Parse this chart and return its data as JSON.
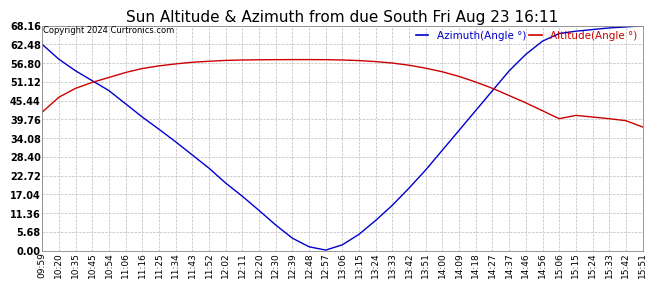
{
  "title": "Sun Altitude & Azimuth from due South Fri Aug 23 16:11",
  "copyright": "Copyright 2024 Curtronics.com",
  "legend_azimuth": "Azimuth(Angle °)",
  "legend_altitude": "Altitude(Angle °)",
  "azimuth_color": "#0000cc",
  "altitude_color": "#cc0000",
  "background_color": "#ffffff",
  "grid_color": "#bbbbbb",
  "yticks": [
    0.0,
    5.68,
    11.36,
    17.04,
    22.72,
    28.4,
    34.08,
    39.76,
    45.44,
    51.12,
    56.8,
    62.48,
    68.16
  ],
  "ylim": [
    0.0,
    68.16
  ],
  "x_labels": [
    "09:59",
    "10:20",
    "10:35",
    "10:45",
    "10:54",
    "11:06",
    "11:16",
    "11:25",
    "11:34",
    "11:43",
    "11:52",
    "12:02",
    "12:11",
    "12:20",
    "12:30",
    "12:39",
    "12:48",
    "12:57",
    "13:06",
    "13:15",
    "13:24",
    "13:33",
    "13:42",
    "13:51",
    "14:00",
    "14:09",
    "14:18",
    "14:27",
    "14:37",
    "14:46",
    "14:56",
    "15:06",
    "15:15",
    "15:24",
    "15:33",
    "15:42",
    "15:51"
  ],
  "azimuth_values": [
    62.5,
    58.0,
    54.5,
    51.5,
    48.5,
    44.5,
    40.5,
    36.8,
    33.0,
    29.0,
    25.0,
    20.5,
    16.5,
    12.2,
    7.8,
    3.8,
    1.2,
    0.2,
    1.8,
    5.0,
    9.2,
    13.8,
    19.0,
    24.5,
    30.5,
    36.5,
    42.5,
    48.5,
    54.5,
    59.5,
    63.5,
    65.8,
    66.5,
    67.0,
    67.5,
    67.8,
    68.16
  ],
  "altitude_values": [
    42.0,
    46.5,
    49.2,
    51.0,
    52.5,
    54.0,
    55.2,
    56.0,
    56.6,
    57.1,
    57.4,
    57.65,
    57.78,
    57.85,
    57.88,
    57.9,
    57.9,
    57.88,
    57.78,
    57.6,
    57.3,
    56.85,
    56.2,
    55.3,
    54.2,
    52.8,
    51.1,
    49.2,
    47.0,
    44.8,
    42.4,
    40.0,
    41.0,
    40.5,
    40.0,
    39.4,
    37.5
  ],
  "title_fontsize": 11,
  "tick_fontsize": 6.5,
  "ytick_fontsize": 7,
  "legend_fontsize": 7.5
}
